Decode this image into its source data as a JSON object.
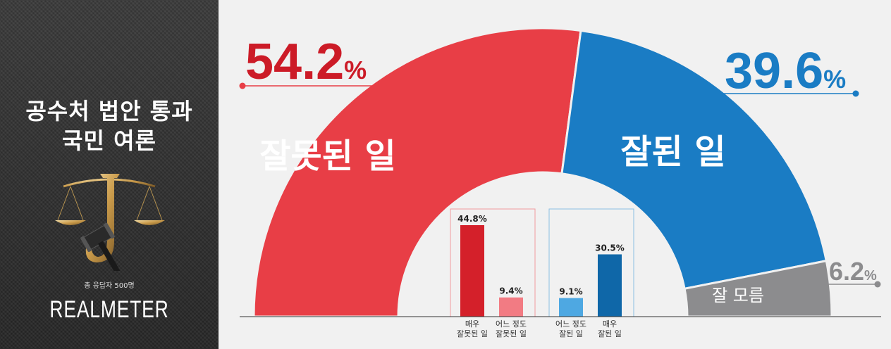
{
  "panel": {
    "title_line1": "공수처 법안 통과",
    "title_line2": "국민 여론",
    "respondents": "총 응답자 500명",
    "brand": "REALMETER"
  },
  "colors": {
    "negative": "#e83e46",
    "positive": "#1a7cc4",
    "unknown": "#8c8c8e",
    "neg_strong": "#d4202a",
    "neg_weak": "#f27b83",
    "pos_weak": "#4ea8e2",
    "pos_strong": "#0f67a8"
  },
  "chart_data": [
    {
      "type": "pie",
      "title": "",
      "categories": [
        "잘못된 일",
        "잘된 일",
        "잘 모름"
      ],
      "values": [
        54.2,
        39.6,
        6.2
      ],
      "labels": [
        "54.2%",
        "39.6%",
        "6.2%"
      ],
      "unit": "%"
    },
    {
      "type": "bar",
      "categories": [
        "매우 잘못된 일",
        "어느 정도 잘못된 일",
        "어느 정도 잘된 일",
        "매우 잘된 일"
      ],
      "category_lines": [
        [
          "매우",
          "잘못된 일"
        ],
        [
          "어느 정도",
          "잘못된 일"
        ],
        [
          "어느 정도",
          "잘된 일"
        ],
        [
          "매우",
          "잘된 일"
        ]
      ],
      "values": [
        44.8,
        9.4,
        9.1,
        30.5
      ],
      "labels": [
        "44.8%",
        "9.4%",
        "9.1%",
        "30.5%"
      ],
      "unit": "%",
      "groups": [
        "잘못된 일",
        "잘못된 일",
        "잘된 일",
        "잘된 일"
      ]
    }
  ]
}
